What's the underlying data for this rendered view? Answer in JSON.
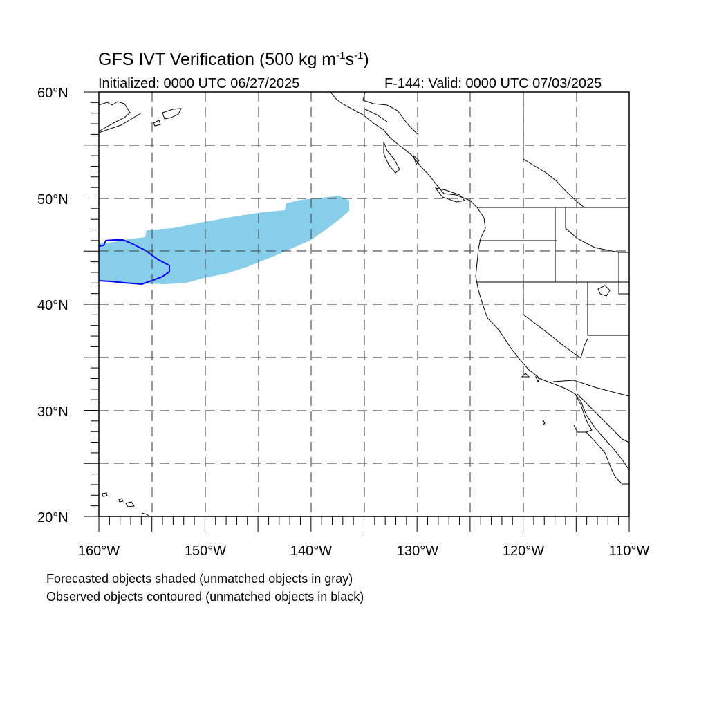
{
  "title": {
    "text": "GFS IVT Verification (500 kg m",
    "sup1": "-1",
    "mid": "s",
    "sup2": "-1",
    "end": ")"
  },
  "subtitle_left": "Initialized: 0000 UTC 06/27/2025",
  "subtitle_right": "F-144: Valid: 0000 UTC 07/03/2025",
  "lat_labels": [
    "60°N",
    "50°N",
    "40°N",
    "30°N",
    "20°N"
  ],
  "lon_labels": [
    "160°W",
    "150°W",
    "140°W",
    "130°W",
    "120°W",
    "110°W"
  ],
  "notes": [
    "Forecasted objects shaded (unmatched objects in gray)",
    "Observed objects contoured (unmatched objects in black)"
  ],
  "map": {
    "lon_range": [
      -160,
      -110
    ],
    "lat_range": [
      20,
      60
    ],
    "gridlines": "dashed, every 5°",
    "forecast_object_color": "#87CEEB",
    "observed_contour_color": "#0000FF",
    "coastline_color": "#000000"
  }
}
